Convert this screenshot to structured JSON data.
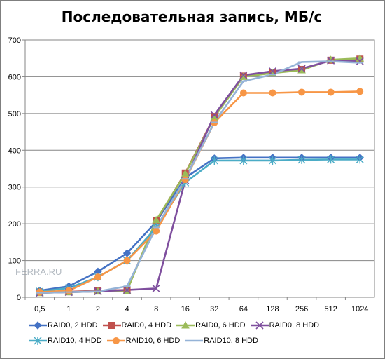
{
  "chart_data": {
    "type": "line",
    "title": "Последовательная запись, МБ/с",
    "categories": [
      "0,5",
      "1",
      "2",
      "4",
      "8",
      "16",
      "32",
      "64",
      "128",
      "256",
      "512",
      "1024"
    ],
    "ylim": [
      0,
      700
    ],
    "yticks": [
      0,
      100,
      200,
      300,
      400,
      500,
      600,
      700
    ],
    "grid": true,
    "legend": "bottom",
    "watermark": "FERRA.RU",
    "series": [
      {
        "name": "RAID0, 2 HDD",
        "color": "#4472C4",
        "marker": "diamond",
        "values": [
          18,
          30,
          70,
          120,
          205,
          325,
          378,
          380,
          380,
          380,
          380,
          380
        ]
      },
      {
        "name": "RAID0, 4 HDD",
        "color": "#C0504D",
        "marker": "square",
        "values": [
          15,
          15,
          18,
          20,
          208,
          338,
          492,
          602,
          612,
          620,
          645,
          648
        ]
      },
      {
        "name": "RAID0, 6 HDD",
        "color": "#9BBB59",
        "marker": "triangle",
        "values": [
          12,
          14,
          16,
          18,
          210,
          336,
          490,
          600,
          610,
          618,
          646,
          650
        ]
      },
      {
        "name": "RAID0, 8 HDD",
        "color": "#7F4F9E",
        "marker": "x",
        "values": [
          12,
          14,
          16,
          20,
          24,
          318,
          496,
          604,
          615,
          622,
          644,
          642
        ]
      },
      {
        "name": "RAID10, 4 HDD",
        "color": "#4BACC6",
        "marker": "star",
        "values": [
          16,
          25,
          55,
          100,
          190,
          312,
          372,
          372,
          372,
          374,
          375,
          375
        ]
      },
      {
        "name": "RAID10, 6 HDD",
        "color": "#F79646",
        "marker": "circle",
        "values": [
          14,
          18,
          55,
          100,
          180,
          320,
          475,
          556,
          556,
          558,
          558,
          560
        ]
      },
      {
        "name": "RAID10, 8 HDD",
        "color": "#95B3D7",
        "marker": "dash",
        "values": [
          12,
          14,
          16,
          30,
          190,
          322,
          476,
          588,
          606,
          640,
          642,
          638
        ]
      }
    ]
  }
}
